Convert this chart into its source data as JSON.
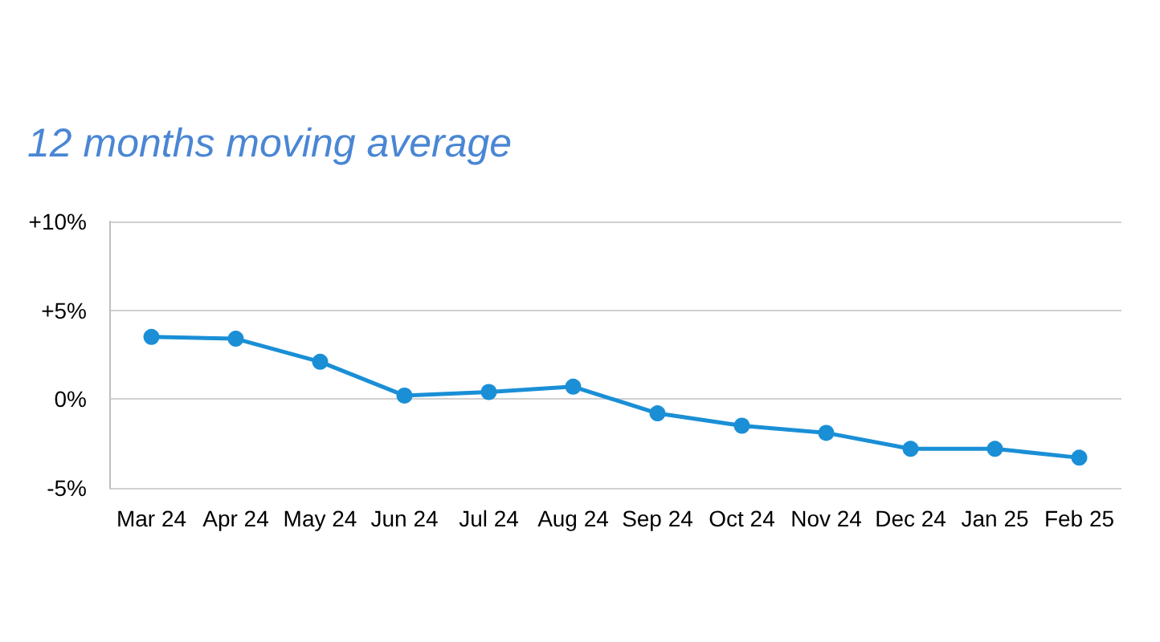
{
  "chart_data": {
    "type": "line",
    "title": "12 months moving average",
    "categories": [
      "Mar 24",
      "Apr 24",
      "May 24",
      "Jun 24",
      "Jul 24",
      "Aug 24",
      "Sep 24",
      "Oct 24",
      "Nov 24",
      "Dec 24",
      "Jan 25",
      "Feb 25"
    ],
    "series": [
      {
        "color": "#1a8fd6",
        "values": [
          3.5,
          3.4,
          2.1,
          0.2,
          0.4,
          0.7,
          -0.8,
          -1.5,
          -1.9,
          -2.8,
          -2.8,
          -3.3
        ]
      }
    ],
    "ylim": [
      -5,
      10
    ],
    "yticks": [
      {
        "value": -5,
        "label": "-5%"
      },
      {
        "value": 0,
        "label": "0%"
      },
      {
        "value": 5,
        "label": "+5%"
      },
      {
        "value": 10,
        "label": "+10%"
      }
    ],
    "grid": "y",
    "marker": "circle",
    "line_style": "solid"
  }
}
